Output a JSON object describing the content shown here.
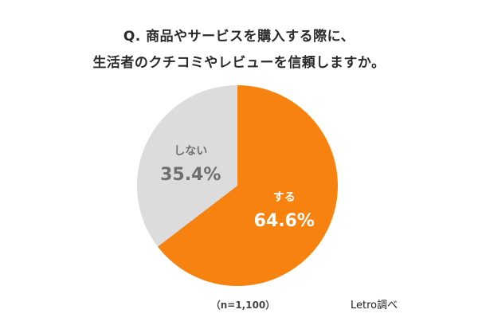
{
  "title": {
    "line1": "Q. 商品やサービスを購入する際に、",
    "line2": "生活者のクチコミやレビューを信頼しますか。"
  },
  "chart_data": {
    "type": "pie",
    "slices": [
      {
        "label": "する",
        "value": 64.6,
        "value_label": "64.6%",
        "color": "#f7820f",
        "label_color": "#ffffff"
      },
      {
        "label": "しない",
        "value": 35.4,
        "value_label": "35.4%",
        "color": "#dcdcdc",
        "label_color": "#6f6f6f"
      }
    ],
    "start": "top",
    "direction": "clockwise",
    "legend": "none"
  },
  "footer": {
    "sample_size": "（n=1,100）",
    "source": "Letro調べ"
  }
}
